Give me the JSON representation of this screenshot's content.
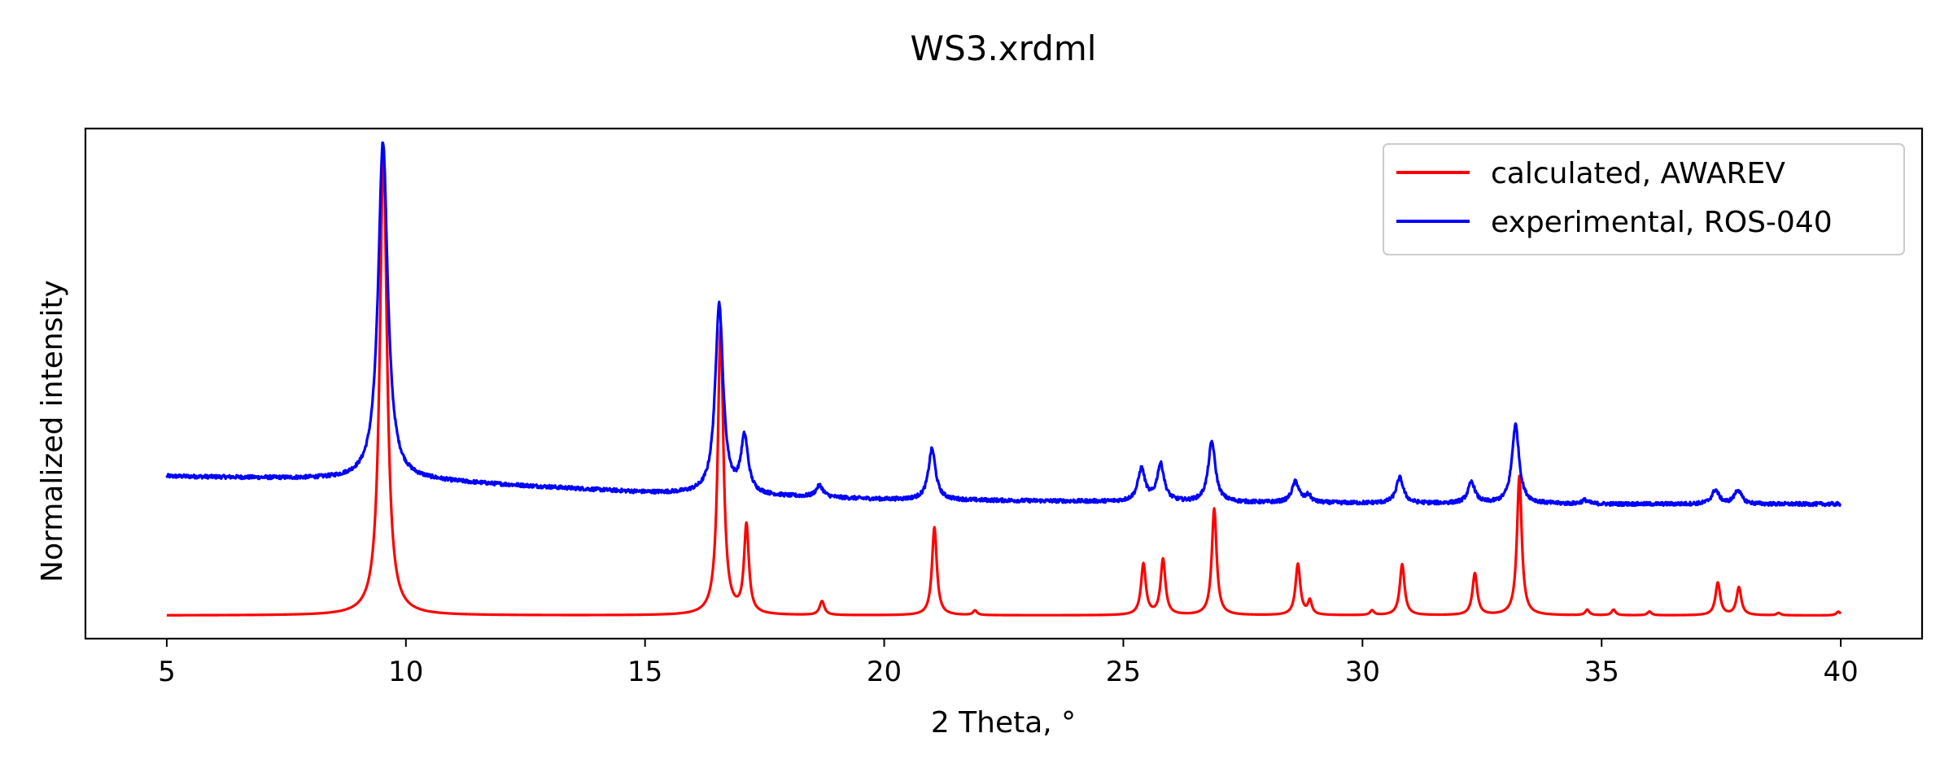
{
  "chart_data": {
    "type": "line",
    "title": "WS3.xrdml",
    "xlabel": "2 Theta, °",
    "ylabel": "Normalized intensity",
    "xlim": [
      3.3,
      41.7
    ],
    "ylim": [
      -0.05,
      1.05
    ],
    "xticks": [
      5,
      10,
      15,
      20,
      25,
      30,
      35,
      40
    ],
    "yticks_visible": false,
    "grid": false,
    "legend_position": "top-right",
    "colors": {
      "calculated": "#ff0000",
      "experimental": "#0000ff"
    },
    "series": [
      {
        "name": "calculated, AWAREV",
        "color": "#ff0000",
        "baseline": 0.0,
        "peaks": [
          {
            "x": 9.53,
            "h": 1.0,
            "w": 0.09
          },
          {
            "x": 16.58,
            "h": 0.62,
            "w": 0.07
          },
          {
            "x": 17.12,
            "h": 0.19,
            "w": 0.06
          },
          {
            "x": 18.7,
            "h": 0.03,
            "w": 0.06
          },
          {
            "x": 21.05,
            "h": 0.19,
            "w": 0.06
          },
          {
            "x": 21.9,
            "h": 0.01,
            "w": 0.05
          },
          {
            "x": 25.42,
            "h": 0.11,
            "w": 0.06
          },
          {
            "x": 25.83,
            "h": 0.12,
            "w": 0.06
          },
          {
            "x": 26.9,
            "h": 0.23,
            "w": 0.06
          },
          {
            "x": 28.65,
            "h": 0.11,
            "w": 0.06
          },
          {
            "x": 28.9,
            "h": 0.03,
            "w": 0.05
          },
          {
            "x": 30.2,
            "h": 0.01,
            "w": 0.05
          },
          {
            "x": 30.83,
            "h": 0.11,
            "w": 0.06
          },
          {
            "x": 32.35,
            "h": 0.09,
            "w": 0.06
          },
          {
            "x": 33.28,
            "h": 0.3,
            "w": 0.06
          },
          {
            "x": 34.7,
            "h": 0.012,
            "w": 0.05
          },
          {
            "x": 35.25,
            "h": 0.012,
            "w": 0.05
          },
          {
            "x": 36.0,
            "h": 0.008,
            "w": 0.05
          },
          {
            "x": 37.43,
            "h": 0.07,
            "w": 0.06
          },
          {
            "x": 37.87,
            "h": 0.06,
            "w": 0.06
          },
          {
            "x": 38.7,
            "h": 0.005,
            "w": 0.05
          },
          {
            "x": 39.95,
            "h": 0.008,
            "w": 0.05
          }
        ]
      },
      {
        "name": "experimental, ROS-040",
        "color": "#0000ff",
        "baseline_points": [
          [
            5.0,
            0.3
          ],
          [
            10.5,
            0.29
          ],
          [
            15.0,
            0.265
          ],
          [
            20.0,
            0.25
          ],
          [
            25.0,
            0.245
          ],
          [
            30.0,
            0.242
          ],
          [
            35.0,
            0.24
          ],
          [
            40.0,
            0.24
          ]
        ],
        "noise": 0.004,
        "peaks": [
          {
            "x": 9.52,
            "h": 0.73,
            "w": 0.12
          },
          {
            "x": 16.55,
            "h": 0.41,
            "w": 0.1
          },
          {
            "x": 17.08,
            "h": 0.12,
            "w": 0.09
          },
          {
            "x": 18.65,
            "h": 0.025,
            "w": 0.09
          },
          {
            "x": 21.0,
            "h": 0.11,
            "w": 0.09
          },
          {
            "x": 25.38,
            "h": 0.07,
            "w": 0.09
          },
          {
            "x": 25.78,
            "h": 0.08,
            "w": 0.09
          },
          {
            "x": 26.85,
            "h": 0.13,
            "w": 0.09
          },
          {
            "x": 28.6,
            "h": 0.045,
            "w": 0.09
          },
          {
            "x": 28.87,
            "h": 0.015,
            "w": 0.07
          },
          {
            "x": 30.78,
            "h": 0.055,
            "w": 0.09
          },
          {
            "x": 32.28,
            "h": 0.045,
            "w": 0.09
          },
          {
            "x": 33.2,
            "h": 0.17,
            "w": 0.09
          },
          {
            "x": 34.65,
            "h": 0.008,
            "w": 0.08
          },
          {
            "x": 37.38,
            "h": 0.03,
            "w": 0.09
          },
          {
            "x": 37.85,
            "h": 0.03,
            "w": 0.09
          }
        ]
      }
    ]
  }
}
